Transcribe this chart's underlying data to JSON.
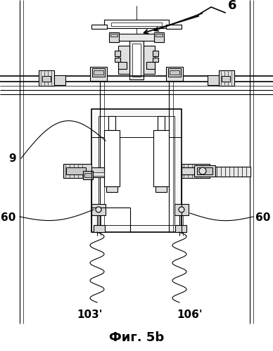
{
  "title": "Фиг. 5b",
  "bg_color": "#ffffff",
  "fig_width": 3.88,
  "fig_height": 4.99,
  "dpi": 100
}
